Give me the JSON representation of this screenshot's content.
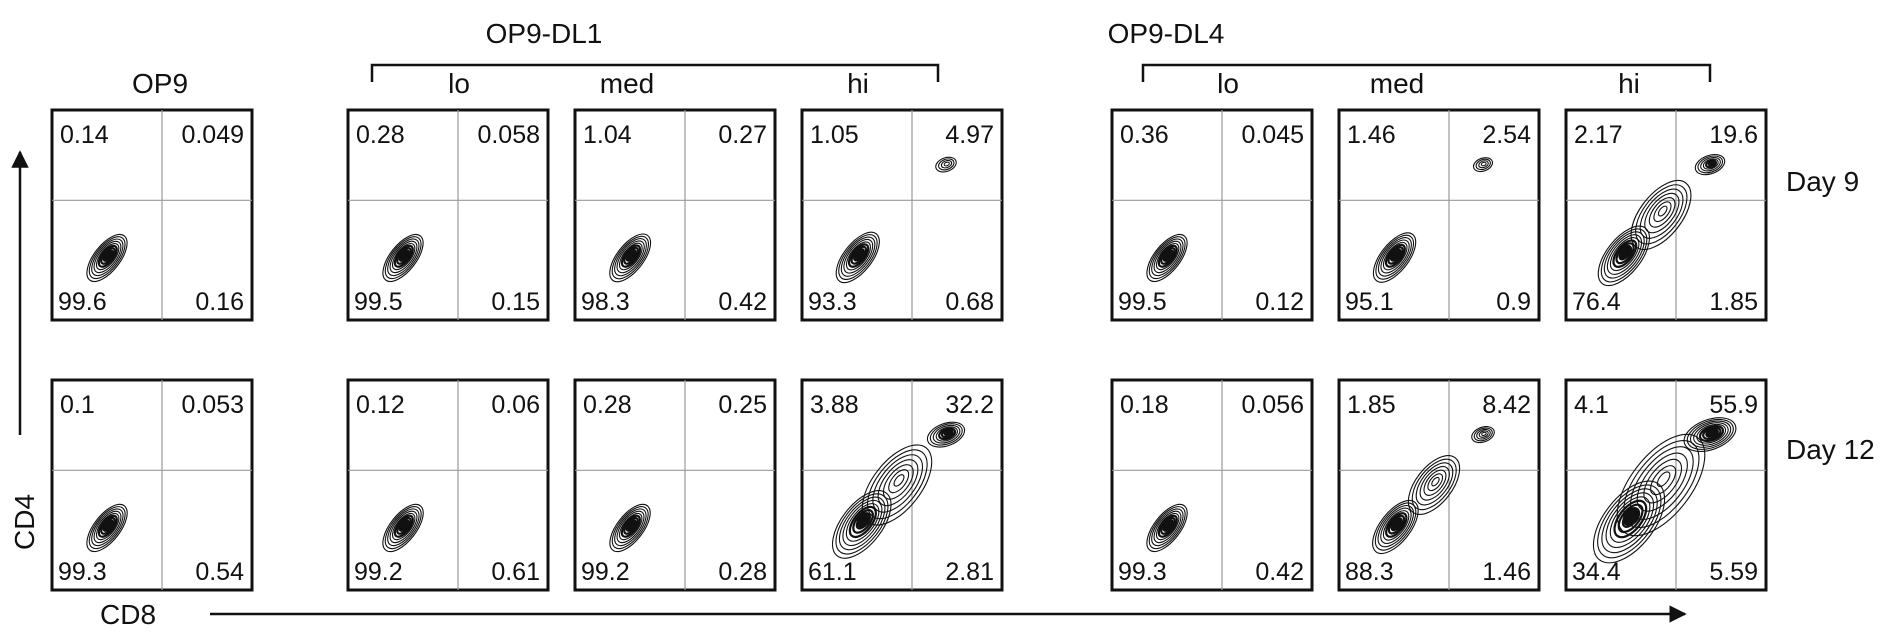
{
  "chart_data": {
    "type": "contour",
    "panels_axis": {
      "xlabel": "CD8",
      "ylabel": "CD4"
    },
    "column_headers": [
      {
        "key": "op9",
        "label": "OP9"
      },
      {
        "key": "dl1",
        "label": "OP9-DL1",
        "sub": [
          "lo",
          "med",
          "hi"
        ]
      },
      {
        "key": "dl4",
        "label": "OP9-DL4",
        "sub": [
          "lo",
          "med",
          "hi"
        ]
      }
    ],
    "rows": [
      {
        "label": "Day 9",
        "panels": [
          {
            "group": "OP9",
            "level": "",
            "q": [
              "0.14",
              "0.049",
              "99.6",
              "0.16"
            ]
          },
          {
            "group": "OP9-DL1",
            "level": "lo",
            "q": [
              "0.28",
              "0.058",
              "99.5",
              "0.15"
            ]
          },
          {
            "group": "OP9-DL1",
            "level": "med",
            "q": [
              "1.04",
              "0.27",
              "98.3",
              "0.42"
            ]
          },
          {
            "group": "OP9-DL1",
            "level": "hi",
            "q": [
              "1.05",
              "4.97",
              "93.3",
              "0.68"
            ]
          },
          {
            "group": "OP9-DL4",
            "level": "lo",
            "q": [
              "0.36",
              "0.045",
              "99.5",
              "0.12"
            ]
          },
          {
            "group": "OP9-DL4",
            "level": "med",
            "q": [
              "1.46",
              "2.54",
              "95.1",
              "0.9"
            ]
          },
          {
            "group": "OP9-DL4",
            "level": "hi",
            "q": [
              "2.17",
              "19.6",
              "76.4",
              "1.85"
            ]
          }
        ]
      },
      {
        "label": "Day 12",
        "panels": [
          {
            "group": "OP9",
            "level": "",
            "q": [
              "0.1",
              "0.053",
              "99.3",
              "0.54"
            ]
          },
          {
            "group": "OP9-DL1",
            "level": "lo",
            "q": [
              "0.12",
              "0.06",
              "99.2",
              "0.61"
            ]
          },
          {
            "group": "OP9-DL1",
            "level": "med",
            "q": [
              "0.28",
              "0.25",
              "99.2",
              "0.28"
            ]
          },
          {
            "group": "OP9-DL1",
            "level": "hi",
            "q": [
              "3.88",
              "32.2",
              "61.1",
              "2.81"
            ]
          },
          {
            "group": "OP9-DL4",
            "level": "lo",
            "q": [
              "0.18",
              "0.056",
              "99.3",
              "0.42"
            ]
          },
          {
            "group": "OP9-DL4",
            "level": "med",
            "q": [
              "1.85",
              "8.42",
              "88.3",
              "1.46"
            ]
          },
          {
            "group": "OP9-DL4",
            "level": "hi",
            "q": [
              "4.1",
              "55.9",
              "34.4",
              "5.59"
            ]
          }
        ]
      }
    ]
  }
}
